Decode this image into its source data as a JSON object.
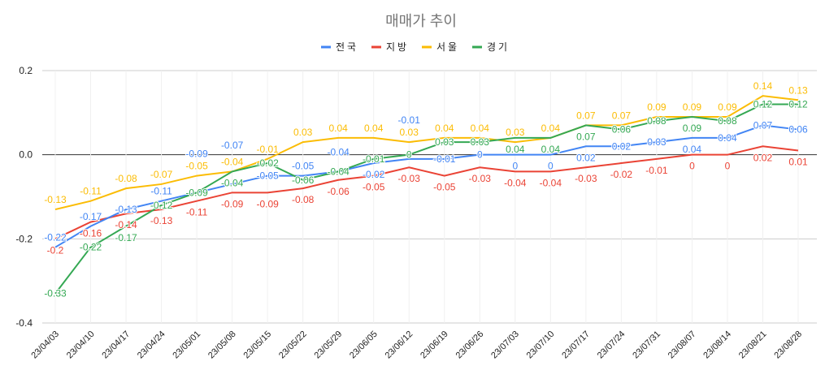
{
  "chart_data": {
    "type": "line",
    "title": "매매가 추이",
    "legend_position": "top",
    "grid": true,
    "ylim": [
      -0.4,
      0.2
    ],
    "yticks": [
      "0.2",
      "0.0",
      "-0.2",
      "-0.4"
    ],
    "ytick_values": [
      0.2,
      0.0,
      -0.2,
      -0.4
    ],
    "categories": [
      "23/04/03",
      "23/04/10",
      "23/04/17",
      "23/04/24",
      "23/05/01",
      "23/05/08",
      "23/05/15",
      "23/05/22",
      "23/05/29",
      "23/06/05",
      "23/06/12",
      "23/06/19",
      "23/06/26",
      "23/07/03",
      "23/07/10",
      "23/07/17",
      "23/07/24",
      "23/07/31",
      "23/08/07",
      "23/08/14",
      "23/08/21",
      "23/08/28"
    ],
    "series": [
      {
        "name": "전국",
        "color": "#4285f4",
        "label_pos": "center",
        "values": [
          -0.22,
          -0.17,
          -0.13,
          -0.11,
          -0.09,
          -0.07,
          -0.05,
          -0.05,
          -0.04,
          -0.02,
          -0.01,
          -0.01,
          0,
          0,
          0,
          0.02,
          0.02,
          0.03,
          0.04,
          0.04,
          0.07,
          0.06
        ]
      },
      {
        "name": "지방",
        "color": "#ea4335",
        "label_pos": "below",
        "values": [
          -0.2,
          -0.16,
          -0.14,
          -0.13,
          -0.11,
          -0.09,
          -0.09,
          -0.08,
          -0.06,
          -0.05,
          -0.03,
          -0.05,
          -0.03,
          -0.04,
          -0.04,
          -0.03,
          -0.02,
          -0.01,
          0,
          0,
          0.02,
          0.01
        ]
      },
      {
        "name": "서울",
        "color": "#fbbc04",
        "label_pos": "above",
        "values": [
          -0.13,
          -0.11,
          -0.08,
          -0.07,
          -0.05,
          -0.04,
          -0.01,
          0.03,
          0.04,
          0.04,
          0.03,
          0.04,
          0.04,
          0.03,
          0.04,
          0.07,
          0.07,
          0.09,
          0.09,
          0.09,
          0.14,
          0.13
        ]
      },
      {
        "name": "경기",
        "color": "#34a853",
        "label_pos": "center",
        "values": [
          -0.33,
          -0.22,
          -0.17,
          -0.12,
          -0.09,
          -0.04,
          -0.02,
          -0.06,
          -0.04,
          -0.01,
          0,
          0.03,
          0.03,
          0.04,
          0.04,
          0.07,
          0.06,
          0.08,
          0.09,
          0.08,
          0.12,
          0.12
        ]
      }
    ]
  }
}
